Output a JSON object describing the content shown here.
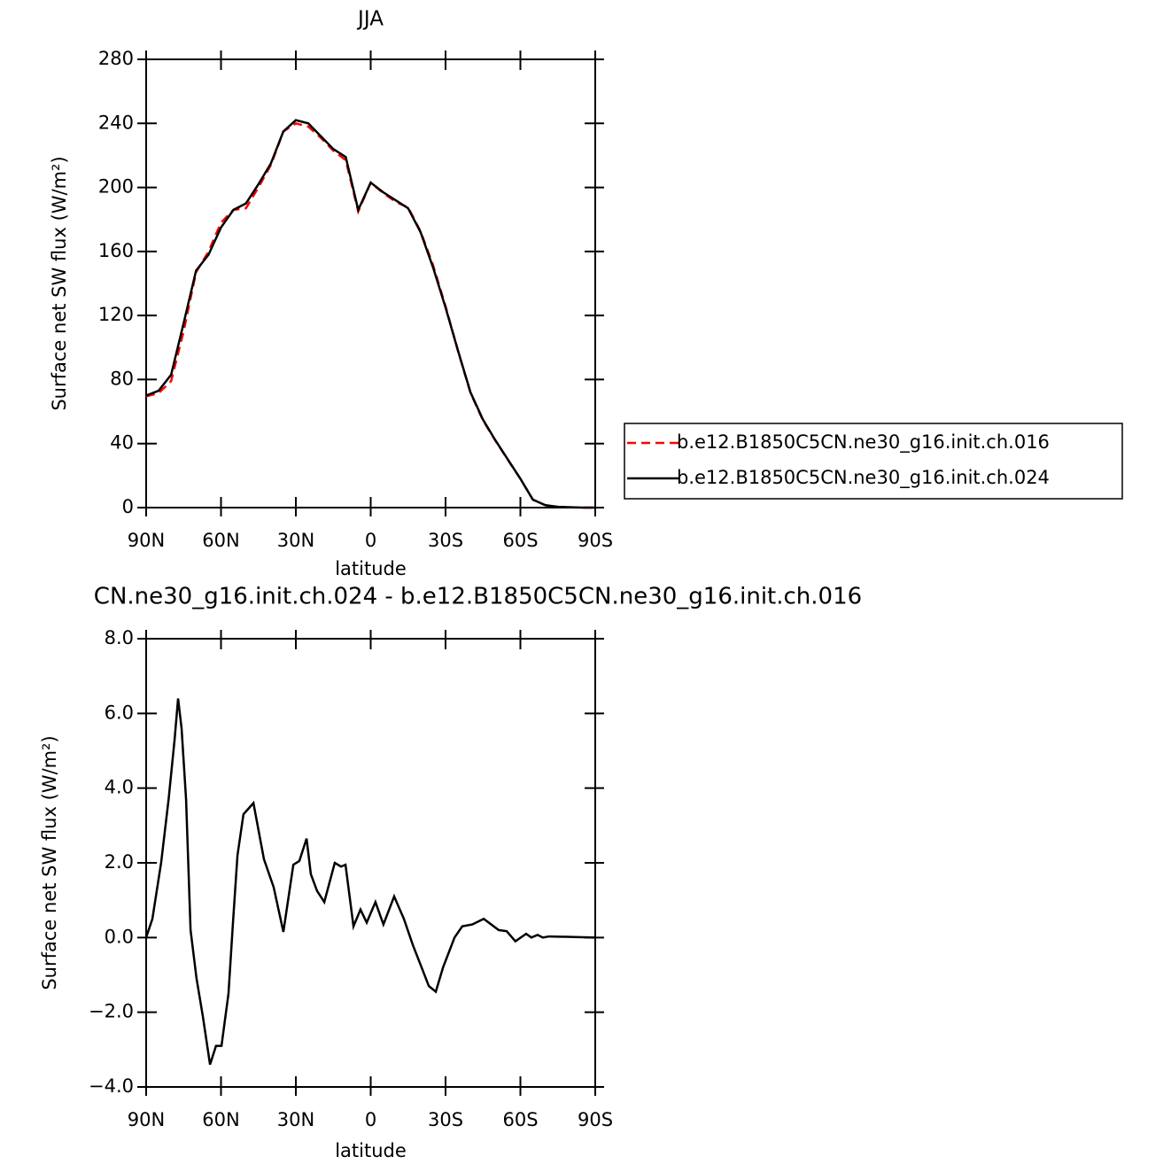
{
  "chart_data": [
    {
      "type": "line",
      "title": "JJA",
      "x_label": "latitude",
      "y_label": "Surface net SW flux (W/m²)",
      "x": [
        90,
        85,
        80,
        75,
        70,
        65,
        60,
        55,
        50,
        45,
        40,
        35,
        30,
        25,
        20,
        15,
        10,
        5,
        0,
        -5,
        -10,
        -15,
        -20,
        -25,
        -30,
        -35,
        -40,
        -45,
        -50,
        -55,
        -60,
        -65,
        -70,
        -75,
        -80,
        -85,
        -90
      ],
      "series": [
        {
          "name": "b.e12.B1850C5CN.ne30_g16.init.ch.016",
          "color": "#ff0000",
          "line_style": "dashed",
          "values": [
            69.5,
            71.5,
            79,
            110,
            147,
            160,
            178,
            186,
            187,
            200,
            214,
            235,
            240,
            238,
            231,
            223,
            217,
            185,
            203,
            196.5,
            191,
            187.5,
            172.5,
            151.4,
            125.8,
            97.8,
            71.6,
            54.5,
            41.8,
            29.8,
            18,
            5,
            1.5,
            0.5,
            0.2,
            0,
            0
          ]
        },
        {
          "name": "b.e12.B1850C5CN.ne30_g16.init.ch.024",
          "color": "#000000",
          "line_style": "solid",
          "values": [
            70,
            73,
            83,
            115,
            148,
            158,
            175,
            186,
            190,
            202,
            215,
            235,
            242,
            240,
            232,
            224,
            219,
            186,
            203,
            197,
            192,
            187,
            172,
            150,
            125,
            98,
            72,
            55,
            42,
            30,
            18,
            5,
            1.5,
            0.5,
            0.2,
            0,
            0
          ]
        }
      ],
      "xlim": [
        90,
        -90
      ],
      "xticks": [
        {
          "value": 90,
          "label": "90N"
        },
        {
          "value": 60,
          "label": "60N"
        },
        {
          "value": 30,
          "label": "30N"
        },
        0,
        {
          "value": -30,
          "label": "30S"
        },
        {
          "value": -60,
          "label": "60S"
        },
        {
          "value": -90,
          "label": "90S"
        }
      ],
      "ylim": [
        0,
        280
      ],
      "yticks": [
        0,
        40,
        80,
        120,
        160,
        200,
        240,
        280
      ],
      "legend": "right"
    },
    {
      "type": "line",
      "title": "CN.ne30_g16.init.ch.024 - b.e12.B1850C5CN.ne30_g16.init.ch.016",
      "x_label": "latitude",
      "y_label": "Surface net SW flux (W/m²)",
      "x": [
        90,
        87.5,
        84,
        81,
        78.6,
        77.2,
        75.8,
        74,
        72.2,
        69.8,
        67.3,
        64.4,
        62,
        59.8,
        57,
        55.2,
        53.4,
        51,
        47,
        42.8,
        38.9,
        35,
        31,
        28.6,
        25.7,
        24,
        21.5,
        18.6,
        14.4,
        11.9,
        10.1,
        6.9,
        4.1,
        1.6,
        -1.9,
        -5.1,
        -9.4,
        -13.3,
        -16.9,
        -20.4,
        -23.3,
        -26.1,
        -29,
        -33.6,
        -36.7,
        -40.7,
        -45.3,
        -51.3,
        -54.5,
        -58,
        -62.3,
        -64.4,
        -66.9,
        -69,
        -71.5,
        -90
      ],
      "values": [
        0,
        0.5,
        2,
        3.7,
        5.3,
        6.4,
        5.6,
        3.7,
        0.2,
        -1.1,
        -2.1,
        -3.4,
        -2.9,
        -2.9,
        -1.5,
        0.4,
        2.2,
        3.3,
        3.6,
        2.1,
        1.35,
        0.15,
        1.95,
        2.05,
        2.65,
        1.7,
        1.25,
        0.95,
        2,
        1.9,
        1.95,
        0.3,
        0.75,
        0.4,
        0.95,
        0.35,
        1.1,
        0.5,
        -0.2,
        -0.8,
        -1.3,
        -1.45,
        -0.8,
        0,
        0.3,
        0.35,
        0.5,
        0.2,
        0.17,
        -0.1,
        0.1,
        0,
        0.07,
        0,
        0.03,
        0
      ],
      "color": "#000000",
      "xlim": [
        90,
        -90
      ],
      "xticks": [
        {
          "value": 90,
          "label": "90N"
        },
        {
          "value": 60,
          "label": "60N"
        },
        {
          "value": 30,
          "label": "30N"
        },
        0,
        {
          "value": -30,
          "label": "30S"
        },
        {
          "value": -60,
          "label": "60S"
        },
        {
          "value": -90,
          "label": "90S"
        }
      ],
      "ylim": [
        -4,
        8
      ],
      "yticks": [
        {
          "value": -4,
          "label": "−4.0"
        },
        {
          "value": -2,
          "label": "−2.0"
        },
        {
          "value": 0,
          "label": "0.0"
        },
        {
          "value": 2,
          "label": "2.0"
        },
        {
          "value": 4,
          "label": "4.0"
        },
        {
          "value": 6,
          "label": "6.0"
        },
        {
          "value": 8,
          "label": "8.0"
        }
      ]
    }
  ]
}
